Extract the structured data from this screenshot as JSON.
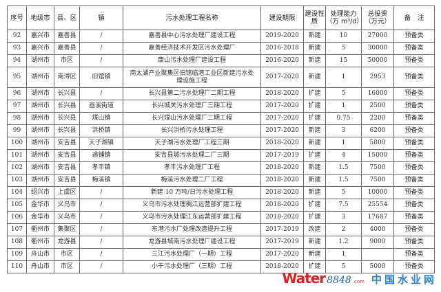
{
  "headers": [
    "序号",
    "地级市",
    "县、区",
    "镇",
    "污水处理工程名称",
    "建设期限",
    "建设性质",
    "处理能力（万 m³/d）",
    "总投资（万元）",
    "备　注"
  ],
  "rows": [
    [
      "92",
      "嘉兴市",
      "嘉善县",
      "/",
      "嘉善县中心污水处理厂建设工程",
      "2019-2020",
      "新建",
      "10",
      "27000",
      "预备类"
    ],
    [
      "93",
      "嘉兴市",
      "嘉善县",
      "/",
      "嘉善经济技术开发区污水处理厂",
      "2016-2018",
      "新建",
      "5",
      "30000",
      "预备类"
    ],
    [
      "94",
      "湖州市",
      "市区",
      "/",
      "康山污水处理厂建设工程",
      "2016-2020",
      "新建",
      "15",
      "50000",
      "预备类"
    ],
    [
      "95",
      "湖州市",
      "南浔区",
      "旧馆镇",
      "南太湖产业聚集区旧馆临港工业区新建污水处理设施工程",
      "2017-2020",
      "新建",
      "1",
      "2953",
      "预备类"
    ],
    [
      "96",
      "湖州市",
      "长兴县",
      "/",
      "长兴县第二污水处理厂二期工程",
      "2018-2020",
      "扩建",
      "5",
      "16000",
      "预备类"
    ],
    [
      "97",
      "湖州市",
      "长兴县",
      "画溪街道",
      "长兴城关污水处理厂三期工程",
      "2017-2020",
      "扩建",
      "1",
      "2500",
      "预备类"
    ],
    [
      "98",
      "湖州市",
      "长兴县",
      "煤山镇",
      "长兴煤山污水处理厂二期工程",
      "2017-2020",
      "扩建",
      "0.75",
      "2200",
      "预备类"
    ],
    [
      "99",
      "湖州市",
      "长兴县",
      "洪桥镇",
      "长兴洪桥污水处理工程",
      "2017-2020",
      "新建",
      "3",
      "6200",
      "预备类"
    ],
    [
      "100",
      "湖州市",
      "安吉县",
      "天子湖镇",
      "天子湖污水处理厂工程三期",
      "2018-2020",
      "新建",
      "1",
      "5800",
      "预备类"
    ],
    [
      "101",
      "湖州市",
      "安吉县",
      "递铺镇",
      "安吉县城污水处理二厂三期",
      "2017-2019",
      "扩建",
      "4",
      "15000",
      "预备类"
    ],
    [
      "102",
      "湖州市",
      "安吉县",
      "孝丰镇",
      "孝丰污水处理厂工程",
      "2018-2020",
      "新建",
      "1.5",
      "7500",
      "预备类"
    ],
    [
      "103",
      "湖州市",
      "安吉县",
      "梅溪镇",
      "梅溪污水处理二厂工程",
      "2018-2020",
      "新建",
      "1.5",
      "7500",
      "预备类"
    ],
    [
      "104",
      "绍兴市",
      "上虞区",
      "/",
      "新建 10 万吨/日污水处理工程",
      "2018-2020",
      "新建",
      "5",
      "10000",
      "预备类"
    ],
    [
      "105",
      "金华市",
      "义乌市",
      "/",
      "义乌市污水处理稠江运营部扩建工程",
      "2018-2020",
      "扩建",
      "7.5",
      "25554",
      "预备类"
    ],
    [
      "106",
      "金华市",
      "义乌市",
      "/",
      "义乌市污水处理江东运营部扩建工程",
      "2018-2020",
      "扩建",
      "3",
      "17687",
      "预备类"
    ],
    [
      "107",
      "衢州市",
      "集聚区",
      "/",
      "东港污水厂处理改造提升工程",
      "2017-2019",
      "改建",
      "2",
      "4000",
      "预备类"
    ],
    [
      "108",
      "衢州市",
      "龙游县",
      "/",
      "龙游县城南污水处理厂建设工程",
      "2017-2019",
      "新建",
      "1.2",
      "9000",
      "预备类"
    ],
    [
      "109",
      "舟山市",
      "市区",
      "/",
      "三江污水处理厂（一期）工程",
      "2017-2020",
      "新建",
      "1",
      "",
      "预备类"
    ],
    [
      "110",
      "舟山市",
      "市区",
      "/",
      "小干污水处理厂（三期）工程",
      "2018-2020",
      "扩建",
      "5",
      "5000",
      "预备类"
    ]
  ],
  "watermark": {
    "brand": "Water",
    "brand_num": "8848",
    "domain": ".com",
    "cn": "中国水业网"
  }
}
